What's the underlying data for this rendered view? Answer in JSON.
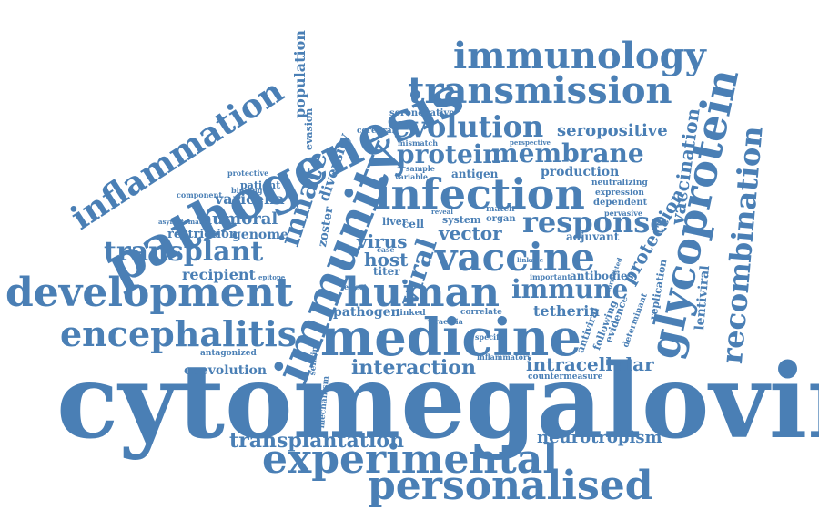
{
  "colors": {
    "word": "#4a7fb5",
    "background": "#ffffff"
  },
  "words": [
    "cytomegalovirus",
    "experimental",
    "personalised",
    "transplantation",
    "neurotropism",
    "medicine",
    "interaction",
    "intracellular",
    "countermeasure",
    "human",
    "immune",
    "vaccine",
    "infection",
    "response",
    "development",
    "encephalitis",
    "transplant",
    "pathogenesis",
    "inflammation",
    "immunity",
    "immunology",
    "transmission",
    "evolution",
    "seropositive",
    "protein",
    "membrane",
    "vaccination",
    "glycoprotein",
    "recombination",
    "population",
    "varicella",
    "humoral",
    "genome",
    "restriction",
    "recipient",
    "coevolution",
    "antagonized",
    "innate",
    "diversity",
    "zoster",
    "evasion",
    "viral",
    "host",
    "virus",
    "vector",
    "tetherin",
    "pathogen",
    "protection",
    "lentiviral",
    "replication",
    "antibodies",
    "adjuvant",
    "production",
    "neutralizing",
    "expression",
    "dependent",
    "pervasive",
    "titer",
    "cell",
    "system",
    "organ",
    "match",
    "liver",
    "mechanism",
    "sensing",
    "antigen",
    "sample",
    "variable",
    "mismatch",
    "cerebral",
    "seronegative",
    "perspective",
    "patient",
    "protective",
    "binding",
    "component",
    "asymptomatic",
    "epitope",
    "important",
    "specific",
    "correlate",
    "linked",
    "viraemia",
    "inflammatory",
    "antiviral",
    "following",
    "evidence",
    "determinant",
    "correlated",
    "linkage",
    "reveal",
    "effect",
    "case"
  ]
}
